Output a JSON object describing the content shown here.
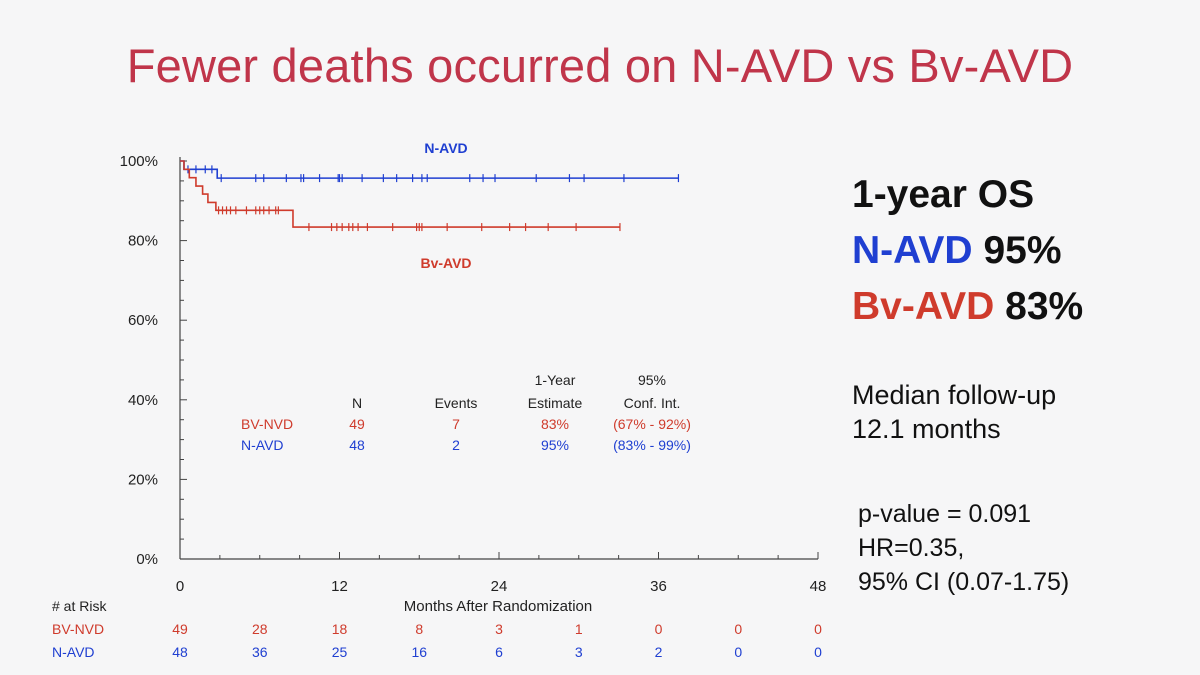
{
  "title": "Fewer deaths occurred on N-AVD vs Bv-AVD",
  "colors": {
    "title": "#c0354a",
    "n_avd": "#1f3fd1",
    "bv_avd": "#cf3b2c",
    "text": "#111111"
  },
  "chart_data": {
    "type": "line",
    "subtype": "kaplan-meier",
    "xlabel": "Months After Randomization",
    "xlim": [
      0,
      48
    ],
    "xticks": [
      0,
      12,
      24,
      36,
      48
    ],
    "ylim": [
      0,
      100
    ],
    "yticks": [
      "0%",
      "20%",
      "40%",
      "60%",
      "80%",
      "100%"
    ],
    "ytick_values": [
      0,
      20,
      40,
      60,
      80,
      100
    ],
    "series": [
      {
        "name": "N-AVD",
        "label": "N-AVD",
        "color": "#1f3fd1",
        "steps": [
          [
            0,
            100
          ],
          [
            0.3,
            97.9
          ],
          [
            2.8,
            95.7
          ],
          [
            37.5,
            95.7
          ]
        ],
        "censor": [
          0.6,
          1.2,
          1.9,
          2.4,
          3.1,
          5.7,
          6.3,
          8.0,
          9.1,
          9.3,
          10.5,
          11.9,
          12.0,
          12.2,
          13.7,
          15.3,
          16.3,
          17.5,
          18.2,
          18.6,
          21.8,
          22.8,
          23.7,
          26.8,
          29.3,
          30.4,
          33.4,
          37.5
        ]
      },
      {
        "name": "Bv-AVD",
        "label": "Bv-AVD",
        "color": "#cf3b2c",
        "steps": [
          [
            0,
            100
          ],
          [
            0.3,
            97.9
          ],
          [
            0.7,
            95.8
          ],
          [
            1.2,
            93.7
          ],
          [
            1.7,
            91.7
          ],
          [
            2.1,
            89.6
          ],
          [
            2.7,
            87.6
          ],
          [
            8.5,
            83.4
          ],
          [
            33.1,
            83.4
          ]
        ],
        "censor": [
          2.9,
          3.2,
          3.5,
          3.8,
          4.2,
          5.0,
          5.7,
          6.0,
          6.3,
          6.7,
          7.2,
          7.4,
          9.7,
          11.4,
          11.8,
          12.2,
          12.7,
          13.0,
          13.4,
          14.1,
          16.0,
          17.8,
          18.0,
          18.2,
          20.1,
          22.7,
          24.8,
          26.0,
          27.7,
          29.8,
          33.1
        ]
      }
    ],
    "annotations": {
      "n_avd": "N-AVD",
      "bv_avd": "Bv-AVD"
    },
    "stats_table": {
      "header1": [
        "",
        "",
        "",
        "1-Year",
        "95%"
      ],
      "header2": [
        "",
        "N",
        "Events",
        "Estimate",
        "Conf. Int."
      ],
      "rows": [
        {
          "name": "BV-NVD",
          "n": "49",
          "events": "7",
          "estimate": "83%",
          "ci": "(67% - 92%)",
          "color": "#cf3b2c"
        },
        {
          "name": "N-AVD",
          "n": "48",
          "events": "2",
          "estimate": "95%",
          "ci": "(83% - 99%)",
          "color": "#1f3fd1"
        }
      ]
    },
    "at_risk": {
      "title": "# at Risk",
      "timepoints": [
        0,
        6,
        12,
        18,
        24,
        30,
        36,
        42,
        48
      ],
      "rows": [
        {
          "name": "BV-NVD",
          "color": "#cf3b2c",
          "values": [
            "49",
            "28",
            "18",
            "8",
            "3",
            "1",
            "0",
            "0",
            "0"
          ]
        },
        {
          "name": "N-AVD",
          "color": "#1f3fd1",
          "values": [
            "48",
            "36",
            "25",
            "16",
            "6",
            "3",
            "2",
            "0",
            "0"
          ]
        }
      ]
    }
  },
  "summary": {
    "heading": "1-year OS",
    "n_avd_name": "N-AVD",
    "n_avd_value": "95%",
    "bv_avd_name": "Bv-AVD",
    "bv_avd_value": "83%",
    "followup_line1": "Median follow-up",
    "followup_line2": "12.1 months",
    "p_value": "p-value = 0.091",
    "hr": "HR=0.35,",
    "ci": "95% CI (0.07-1.75)"
  }
}
